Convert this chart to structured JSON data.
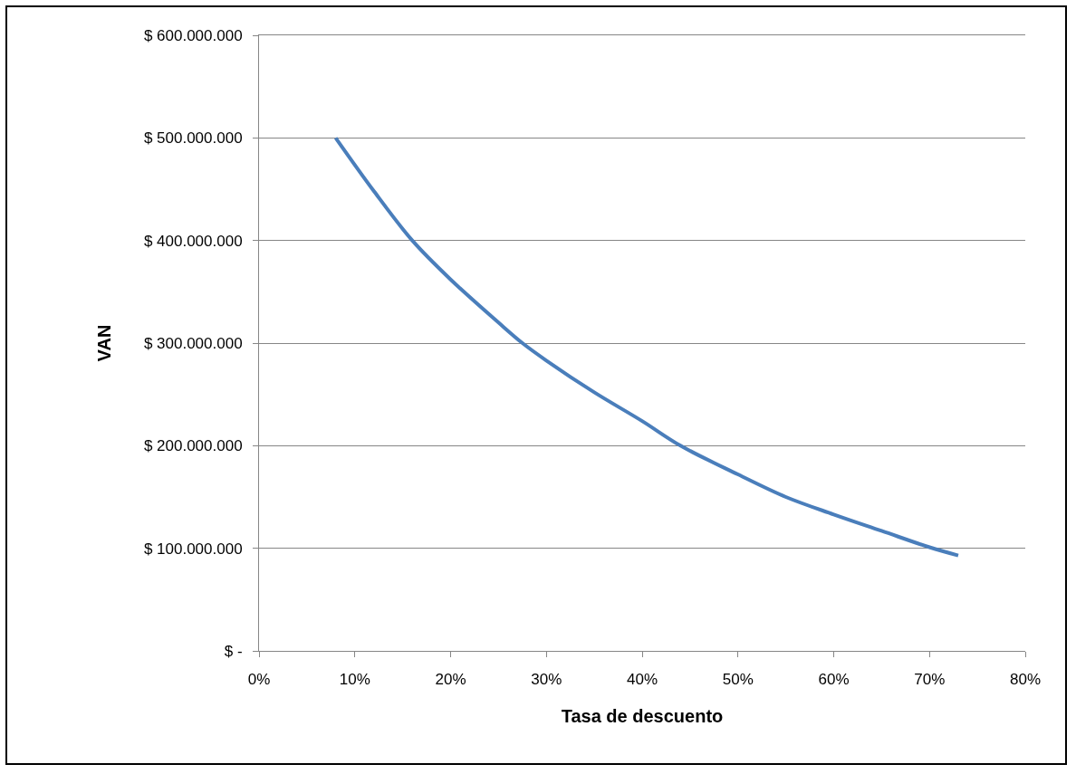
{
  "chart_data": {
    "type": "line",
    "xlabel": "Tasa de descuento",
    "ylabel": "VAN",
    "x": [
      8,
      12,
      16,
      20,
      25,
      27.5,
      30,
      35,
      40,
      44,
      50,
      55,
      60,
      65,
      70,
      73
    ],
    "series": [
      {
        "color": "#4a7ebb",
        "values": [
          500000000,
          448000000,
          400000000,
          362000000,
          320000000,
          300000000,
          283000000,
          252000000,
          224000000,
          200000000,
          172000000,
          150000000,
          133000000,
          117000000,
          101000000,
          93000000
        ]
      }
    ],
    "xlim": [
      0,
      80
    ],
    "ylim": [
      0,
      600000000
    ],
    "xticks": [
      {
        "value": 0,
        "label": "0%"
      },
      {
        "value": 10,
        "label": "10%"
      },
      {
        "value": 20,
        "label": "20%"
      },
      {
        "value": 30,
        "label": "30%"
      },
      {
        "value": 40,
        "label": "40%"
      },
      {
        "value": 50,
        "label": "50%"
      },
      {
        "value": 60,
        "label": "60%"
      },
      {
        "value": 70,
        "label": "70%"
      },
      {
        "value": 80,
        "label": "80%"
      }
    ],
    "yticks": [
      {
        "value": 0,
        "label": "$ -"
      },
      {
        "value": 100000000,
        "label": "$ 100.000.000"
      },
      {
        "value": 200000000,
        "label": "$ 200.000.000"
      },
      {
        "value": 300000000,
        "label": "$ 300.000.000"
      },
      {
        "value": 400000000,
        "label": "$ 400.000.000"
      },
      {
        "value": 500000000,
        "label": "$ 500.000.000"
      },
      {
        "value": 600000000,
        "label": "$ 600.000.000"
      }
    ],
    "grid": "y",
    "marker": "none",
    "line_style": "solid"
  }
}
